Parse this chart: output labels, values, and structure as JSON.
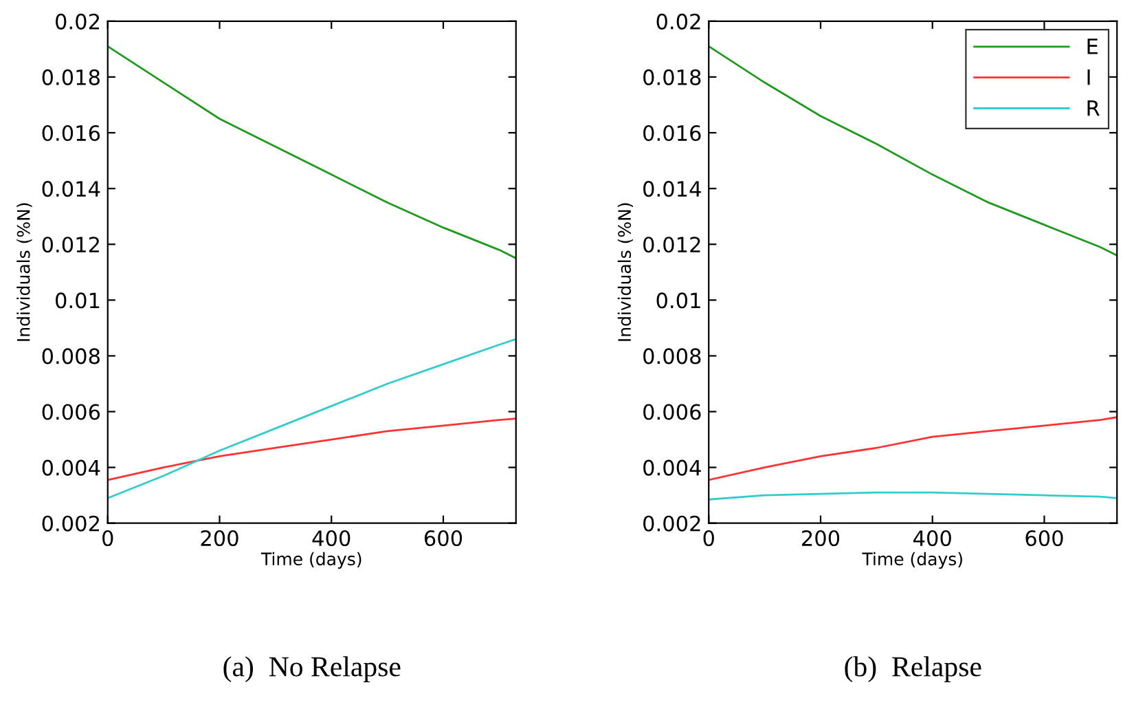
{
  "chart_data": [
    {
      "type": "line",
      "xlabel": "Time (days)",
      "ylabel": "Individuals (%N)",
      "xlim": [
        0,
        730
      ],
      "ylim": [
        0.002,
        0.02
      ],
      "xticks": [
        0,
        200,
        400,
        600
      ],
      "yticks": [
        0.002,
        0.004,
        0.006,
        0.008,
        0.01,
        0.012,
        0.014,
        0.016,
        0.018,
        0.02
      ],
      "grid": false,
      "legend": false,
      "annotations": [
        "(a)  No Relapse"
      ],
      "x": [
        0,
        100,
        200,
        300,
        400,
        500,
        600,
        700,
        730
      ],
      "series": [
        {
          "color": "#1f9a1f",
          "values": [
            0.0191,
            0.0178,
            0.0165,
            0.0155,
            0.0145,
            0.0135,
            0.0126,
            0.0118,
            0.0115
          ]
        },
        {
          "color": "#ff3333",
          "values": [
            0.00355,
            0.004,
            0.0044,
            0.0047,
            0.005,
            0.0053,
            0.0055,
            0.0057,
            0.00575
          ]
        },
        {
          "color": "#33cccc",
          "values": [
            0.0029,
            0.0037,
            0.0046,
            0.0054,
            0.0062,
            0.007,
            0.0077,
            0.0084,
            0.0086
          ]
        }
      ]
    },
    {
      "type": "line",
      "xlabel": "Time (days)",
      "ylabel": "Individuals (%N)",
      "xlim": [
        0,
        730
      ],
      "ylim": [
        0.002,
        0.02
      ],
      "xticks": [
        0,
        200,
        400,
        600
      ],
      "yticks": [
        0.002,
        0.004,
        0.006,
        0.008,
        0.01,
        0.012,
        0.014,
        0.016,
        0.018,
        0.02
      ],
      "grid": false,
      "legend": "top right",
      "annotations": [
        "(b)  Relapse"
      ],
      "x": [
        0,
        100,
        200,
        300,
        400,
        500,
        600,
        700,
        730
      ],
      "series": [
        {
          "name": "E",
          "color": "#1f9a1f",
          "values": [
            0.0191,
            0.0178,
            0.0166,
            0.0156,
            0.0145,
            0.0135,
            0.0127,
            0.0119,
            0.0116
          ]
        },
        {
          "name": "I",
          "color": "#ff3333",
          "values": [
            0.00355,
            0.004,
            0.0044,
            0.0047,
            0.0051,
            0.0053,
            0.0055,
            0.0057,
            0.0058
          ]
        },
        {
          "name": "R",
          "color": "#33cccc",
          "values": [
            0.00285,
            0.003,
            0.00305,
            0.0031,
            0.0031,
            0.00305,
            0.003,
            0.00295,
            0.0029
          ]
        }
      ]
    }
  ]
}
